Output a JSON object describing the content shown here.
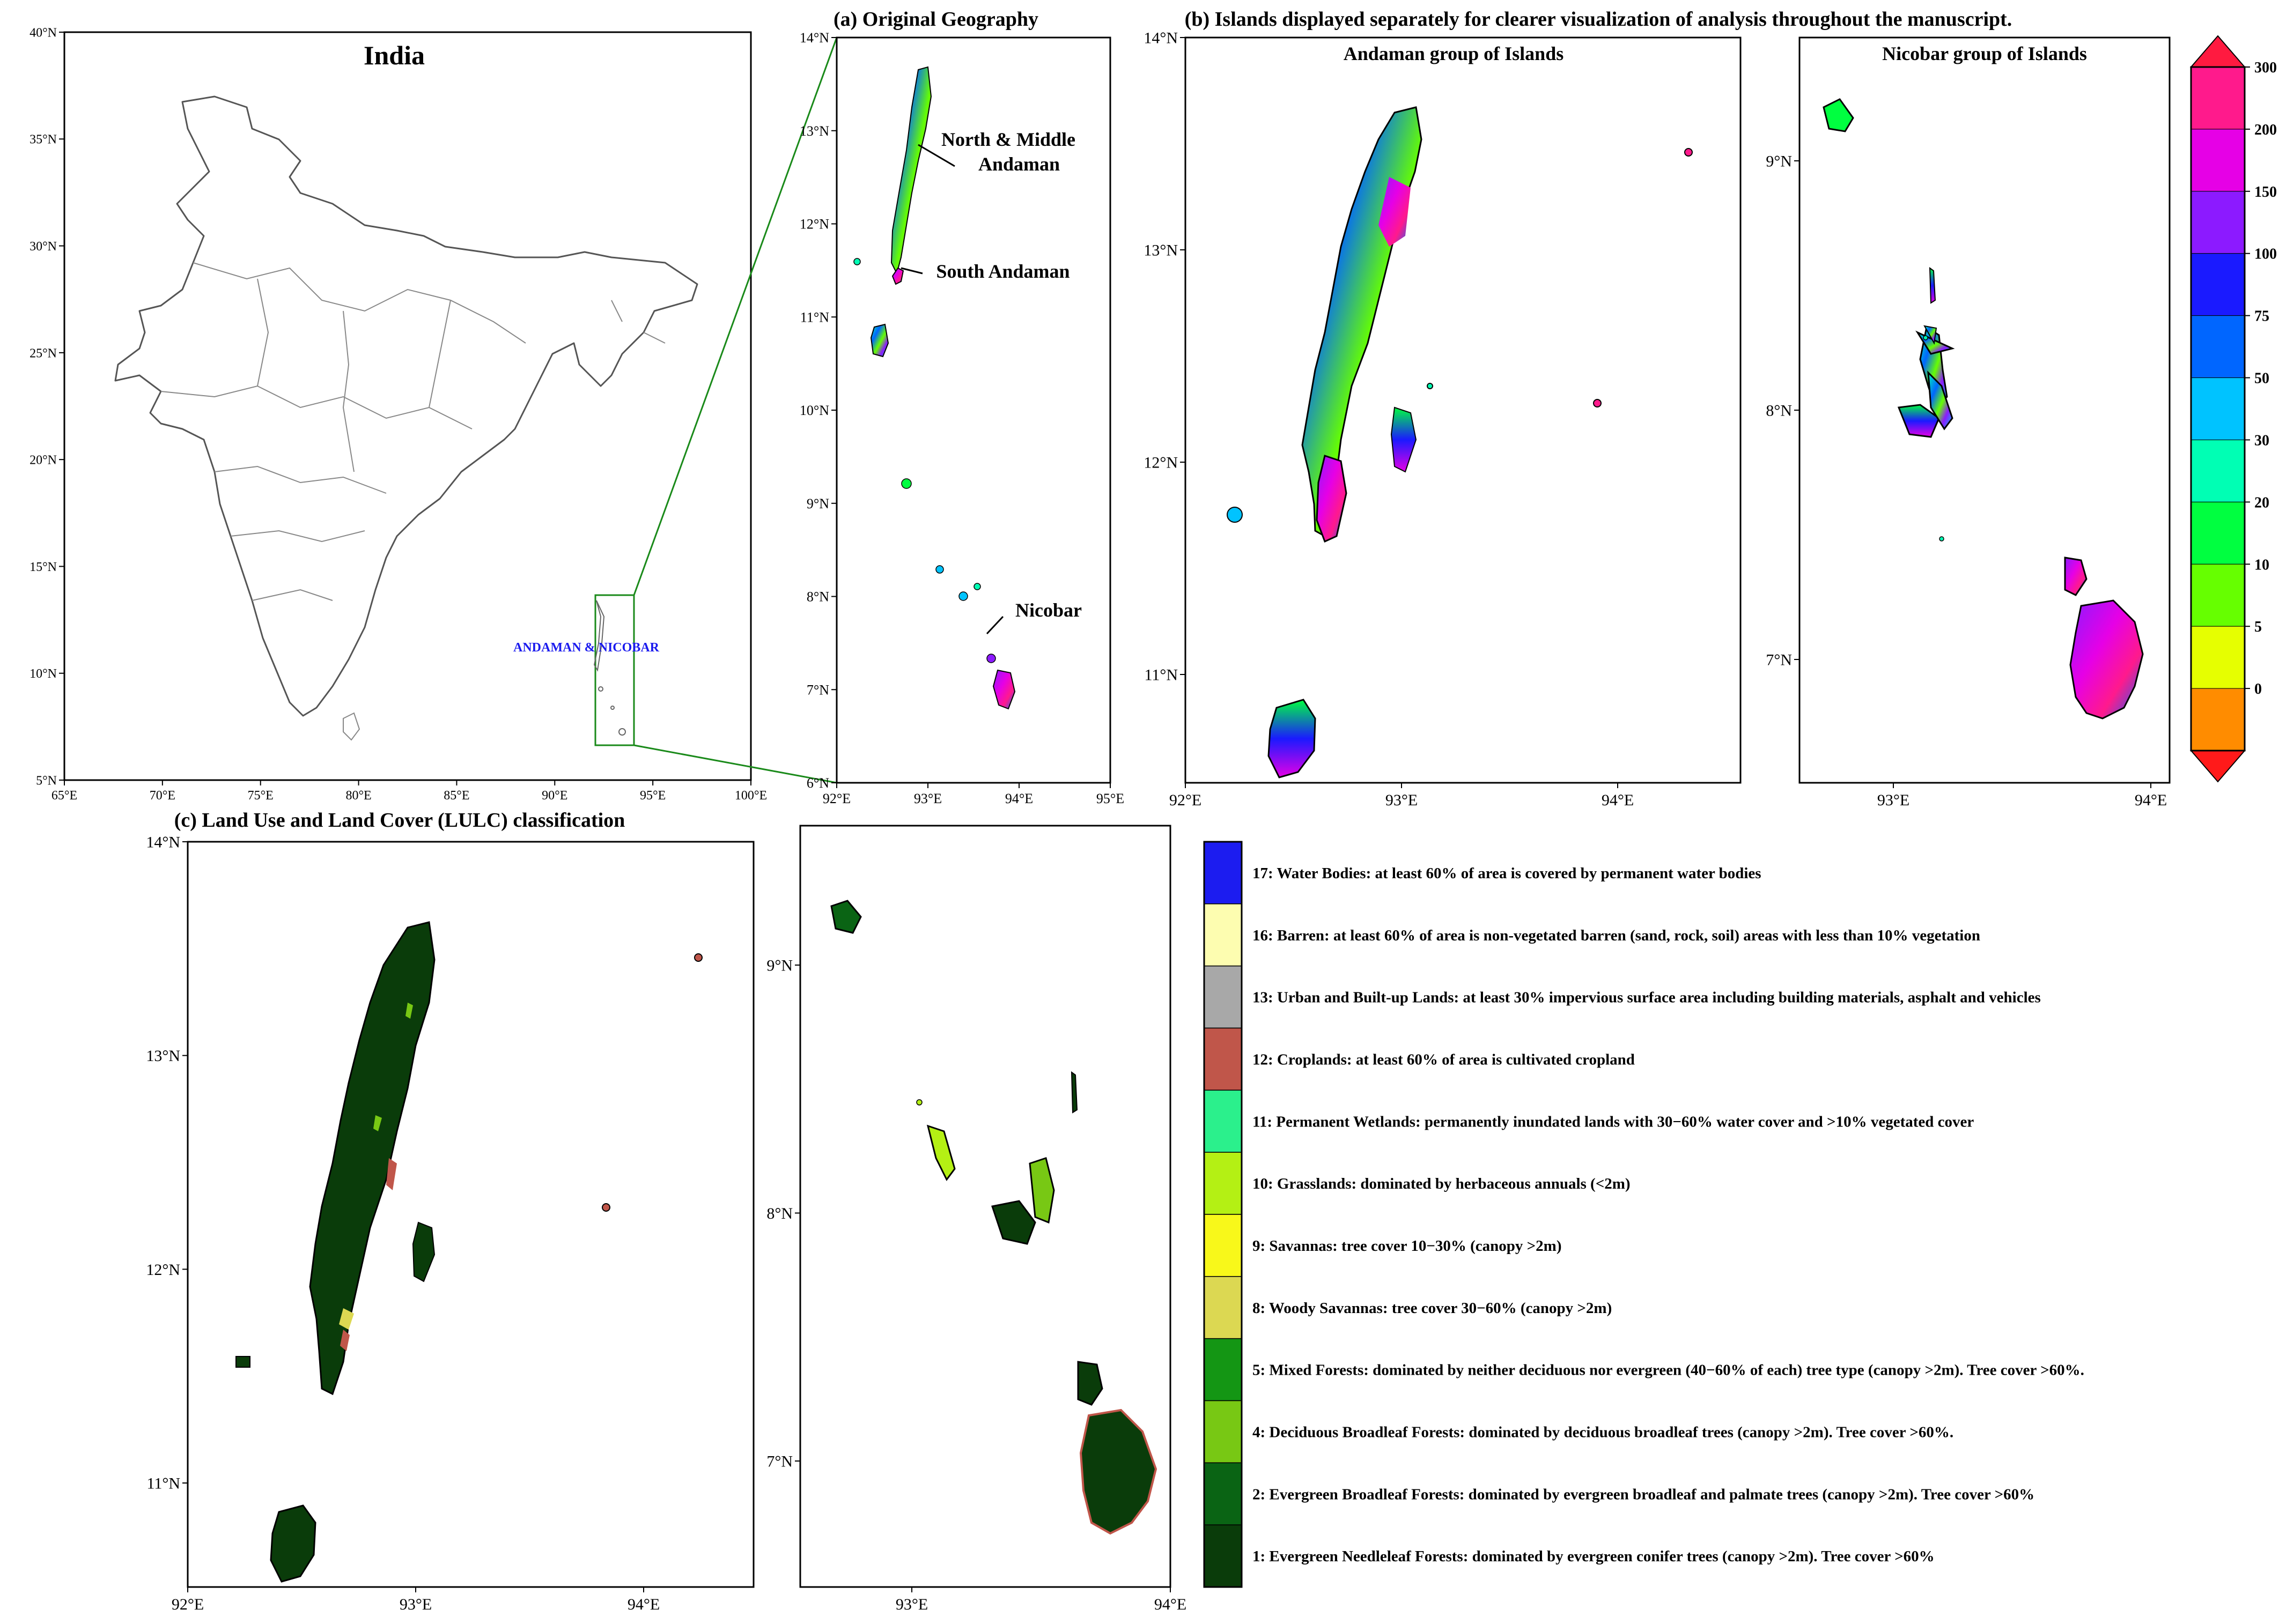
{
  "india_panel": {
    "title": "India",
    "region_label": "ANDAMAN & NICOBAR",
    "x_ticks": [
      "65°E",
      "70°E",
      "75°E",
      "80°E",
      "85°E",
      "90°E",
      "95°E",
      "100°E"
    ],
    "y_ticks": [
      "40°N",
      "35°N",
      "30°N",
      "25°N",
      "20°N",
      "15°N",
      "10°N",
      "5°N"
    ]
  },
  "panel_a": {
    "title": "(a) Original Geography",
    "labels": [
      "North & Middle",
      "Andaman",
      "South Andaman",
      "Nicobar"
    ],
    "x_ticks": [
      "92°E",
      "93°E",
      "94°E",
      "95°E"
    ],
    "y_ticks": [
      "14°N",
      "13°N",
      "12°N",
      "11°N",
      "10°N",
      "9°N",
      "8°N",
      "7°N",
      "6°N"
    ]
  },
  "panel_b": {
    "title": "(b) Islands displayed separately for clearer visualization of analysis throughout the manuscript.",
    "andaman_title": "Andaman group of Islands",
    "nicobar_title": "Nicobar group of Islands",
    "andaman_x_ticks": [
      "92°E",
      "93°E",
      "94°E"
    ],
    "andaman_y_ticks": [
      "14°N",
      "13°N",
      "12°N",
      "11°N"
    ],
    "nicobar_x_ticks": [
      "93°E",
      "94°E"
    ],
    "nicobar_y_ticks": [
      "9°N",
      "8°N",
      "7°N"
    ]
  },
  "colorbar": {
    "levels": [
      "300",
      "200",
      "150",
      "100",
      "75",
      "50",
      "30",
      "20",
      "10",
      "5",
      "0"
    ],
    "colors": [
      "#ff1a8c",
      "#e600e6",
      "#8c1aff",
      "#1a1aff",
      "#0066ff",
      "#00c3ff",
      "#00ffb4",
      "#00ff40",
      "#66ff00",
      "#e6ff00",
      "#ff8c00"
    ],
    "arrow_top_color": "#ff1a40",
    "arrow_bottom_color": "#ff1a1a"
  },
  "panel_c": {
    "title": "(c) Land Use and Land Cover (LULC) classification",
    "andaman_x_ticks": [
      "92°E",
      "93°E",
      "94°E"
    ],
    "andaman_y_ticks": [
      "14°N",
      "13°N",
      "12°N",
      "11°N"
    ],
    "nicobar_x_ticks": [
      "93°E",
      "94°E"
    ],
    "nicobar_y_ticks": [
      "9°N",
      "8°N",
      "7°N"
    ]
  },
  "legend": [
    {
      "color": "#1c1cf0",
      "label": "17: Water Bodies: at least 60% of area is covered by permanent water bodies"
    },
    {
      "color": "#fdfdb0",
      "label": "16: Barren: at least 60% of area is non-vegetated barren (sand, rock, soil) areas with less than 10% vegetation"
    },
    {
      "color": "#a8a8a8",
      "label": "13: Urban and Built-up Lands: at least 30% impervious surface area including building materials, asphalt and vehicles"
    },
    {
      "color": "#c0564a",
      "label": "12: Croplands: at least 60% of area is cultivated cropland"
    },
    {
      "color": "#2bf08c",
      "label": "11: Permanent Wetlands: permanently inundated lands with 30−60% water cover and >10% vegetated cover"
    },
    {
      "color": "#b4f014",
      "label": "10: Grasslands: dominated by herbaceous annuals (<2m)"
    },
    {
      "color": "#f8f81a",
      "label": "9: Savannas: tree cover 10−30% (canopy >2m)"
    },
    {
      "color": "#dcd852",
      "label": "8: Woody Savannas: tree cover 30−60% (canopy >2m)"
    },
    {
      "color": "#149614",
      "label": "5: Mixed Forests: dominated by neither deciduous nor evergreen (40−60% of each) tree type (canopy >2m). Tree cover >60%."
    },
    {
      "color": "#78c814",
      "label": "4: Deciduous Broadleaf Forests: dominated by deciduous broadleaf trees (canopy >2m). Tree cover >60%."
    },
    {
      "color": "#0a6414",
      "label": "2: Evergreen Broadleaf Forests: dominated by evergreen broadleaf and palmate trees (canopy >2m). Tree cover >60%"
    },
    {
      "color": "#0a3c0a",
      "label": "1: Evergreen Needleleaf Forests: dominated by evergreen conifer trees (canopy >2m). Tree cover >60%"
    }
  ]
}
